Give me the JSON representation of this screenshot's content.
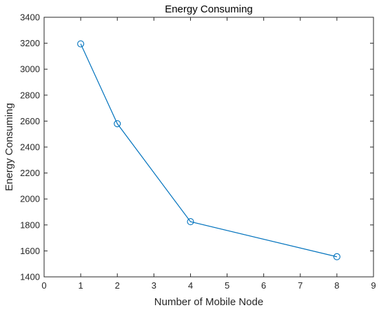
{
  "chart_data": {
    "type": "line",
    "title": "Energy Consuming",
    "xlabel": "Number of Mobile Node",
    "ylabel": "Energy Consuming",
    "xlim": [
      0,
      9
    ],
    "ylim": [
      1400,
      3400
    ],
    "x_ticks": [
      "0",
      "1",
      "2",
      "3",
      "4",
      "5",
      "6",
      "7",
      "8",
      "9"
    ],
    "y_ticks": [
      "1400",
      "1600",
      "1800",
      "2000",
      "2200",
      "2400",
      "2600",
      "2800",
      "3000",
      "3200",
      "3400"
    ],
    "grid": false,
    "series": [
      {
        "x": [
          1,
          2,
          4,
          8
        ],
        "values": [
          3195,
          2580,
          1825,
          1555
        ],
        "marker": "circle",
        "color": "#0072BD"
      }
    ]
  }
}
